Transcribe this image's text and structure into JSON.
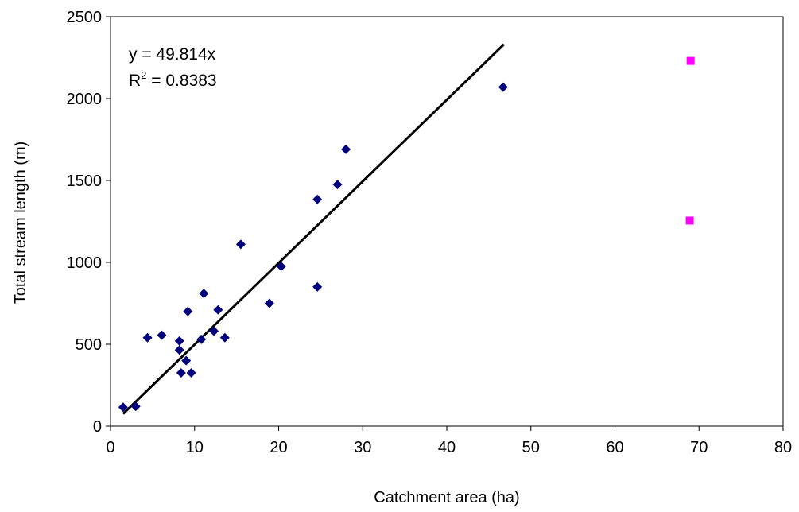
{
  "chart_data": {
    "type": "scatter",
    "title": "",
    "xlabel": "Catchment area (ha)",
    "ylabel": "Total stream length (m)",
    "xlim": [
      0,
      80
    ],
    "ylim": [
      0,
      2500
    ],
    "xticks": [
      "0",
      "10",
      "20",
      "30",
      "40",
      "50",
      "60",
      "70",
      "80"
    ],
    "yticks": [
      "0",
      "500",
      "1000",
      "1500",
      "2000",
      "2500"
    ],
    "grid": false,
    "legend": "none",
    "series": [
      {
        "marker": "diamond",
        "color": "#00007F",
        "points": [
          [
            1.5,
            115
          ],
          [
            3.0,
            120
          ],
          [
            4.4,
            540
          ],
          [
            6.1,
            555
          ],
          [
            8.2,
            520
          ],
          [
            8.2,
            465
          ],
          [
            8.4,
            325
          ],
          [
            9.0,
            400
          ],
          [
            9.2,
            700
          ],
          [
            9.6,
            325
          ],
          [
            10.8,
            530
          ],
          [
            11.1,
            810
          ],
          [
            12.3,
            580
          ],
          [
            12.8,
            710
          ],
          [
            13.6,
            540
          ],
          [
            15.5,
            1110
          ],
          [
            18.9,
            750
          ],
          [
            20.3,
            975
          ],
          [
            24.6,
            1385
          ],
          [
            24.6,
            850
          ],
          [
            27.0,
            1475
          ],
          [
            28.0,
            1690
          ],
          [
            46.7,
            2070
          ]
        ]
      },
      {
        "marker": "square",
        "color": "#FF00FF",
        "points": [
          [
            69.0,
            2230
          ],
          [
            68.9,
            1255
          ]
        ]
      }
    ],
    "trendline": {
      "slope": 49.814,
      "x_range": [
        1.5,
        46.8
      ],
      "color": "#000000"
    },
    "annotation": {
      "equation": "y = 49.814x",
      "r_label": "R",
      "r_sup": "2",
      "r_value": " = 0.8383"
    }
  }
}
